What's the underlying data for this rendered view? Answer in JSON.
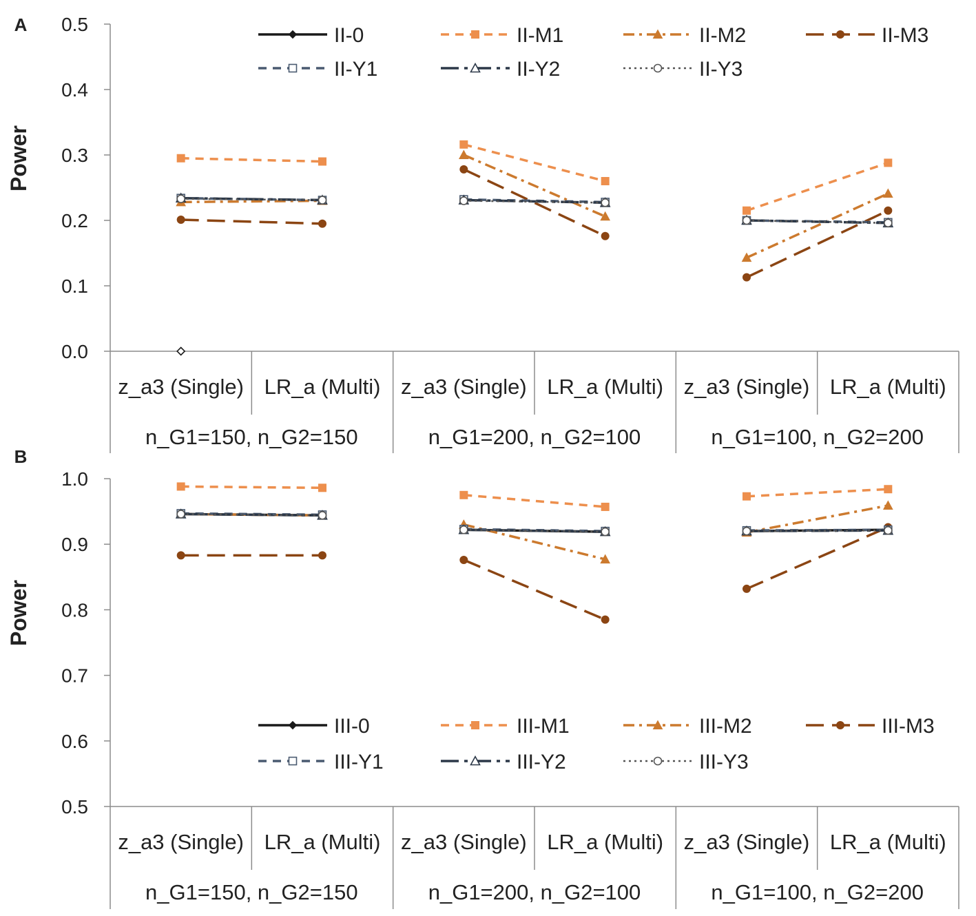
{
  "chart_data": [
    {
      "type": "line",
      "panel": "A",
      "ylabel": "Power",
      "ylim": [
        0.0,
        0.5
      ],
      "yticks": [
        "0.0",
        "0.1",
        "0.2",
        "0.3",
        "0.4",
        "0.5"
      ],
      "categories": [
        "z_a3 (Single)",
        "LR_a (Multi)",
        "z_a3 (Single)",
        "LR_a (Multi)",
        "z_a3 (Single)",
        "LR_a (Multi)"
      ],
      "groups": [
        "n_G1=150, n_G2=150",
        "n_G1=200, n_G2=100",
        "n_G1=100, n_G2=200"
      ],
      "legend_position": "top",
      "series": [
        {
          "name": "II-0",
          "color": "#1a1a1a",
          "dash": "solid",
          "marker": "diamond",
          "values": [
            0.0,
            null,
            null,
            null,
            null,
            null
          ]
        },
        {
          "name": "II-M1",
          "color": "#ed8f4d",
          "dash": "dash",
          "marker": "square",
          "values": [
            0.295,
            0.29,
            0.316,
            0.26,
            0.215,
            0.288
          ]
        },
        {
          "name": "II-M2",
          "color": "#cc7a2e",
          "dash": "dashdot",
          "marker": "triangle",
          "values": [
            0.228,
            0.23,
            0.3,
            0.206,
            0.143,
            0.241
          ]
        },
        {
          "name": "II-M3",
          "color": "#8b4513",
          "dash": "longdash",
          "marker": "circle",
          "values": [
            0.201,
            0.195,
            0.278,
            0.176,
            0.113,
            0.215
          ]
        },
        {
          "name": "II-Y1",
          "color": "#4a5a70",
          "dash": "dash",
          "marker": "square-open",
          "values": [
            0.234,
            0.231,
            0.232,
            0.228,
            0.2,
            0.197
          ]
        },
        {
          "name": "II-Y2",
          "color": "#2c3848",
          "dash": "longdashdot",
          "marker": "triangle-open",
          "values": [
            0.234,
            0.231,
            0.231,
            0.227,
            0.2,
            0.196
          ]
        },
        {
          "name": "II-Y3",
          "color": "#555555",
          "dash": "dot",
          "marker": "circle-open",
          "values": [
            0.233,
            0.231,
            0.23,
            0.227,
            0.2,
            0.196
          ]
        }
      ]
    },
    {
      "type": "line",
      "panel": "B",
      "ylabel": "Power",
      "ylim": [
        0.5,
        1.0
      ],
      "yticks": [
        "0.5",
        "0.6",
        "0.7",
        "0.8",
        "0.9",
        "1.0"
      ],
      "categories": [
        "z_a3 (Single)",
        "LR_a (Multi)",
        "z_a3 (Single)",
        "LR_a (Multi)",
        "z_a3 (Single)",
        "LR_a (Multi)"
      ],
      "groups": [
        "n_G1=150, n_G2=150",
        "n_G1=200, n_G2=100",
        "n_G1=100, n_G2=200"
      ],
      "legend_position": "bottom",
      "series": [
        {
          "name": "III-0",
          "color": "#1a1a1a",
          "dash": "solid",
          "marker": "diamond",
          "values": [
            0.946,
            0.944,
            0.922,
            0.919,
            0.92,
            0.922
          ]
        },
        {
          "name": "III-M1",
          "color": "#ed8f4d",
          "dash": "dash",
          "marker": "square",
          "values": [
            0.988,
            0.986,
            0.975,
            0.957,
            0.973,
            0.984
          ]
        },
        {
          "name": "III-M2",
          "color": "#cc7a2e",
          "dash": "dashdot",
          "marker": "triangle",
          "values": [
            0.946,
            0.944,
            0.93,
            0.877,
            0.918,
            0.959
          ]
        },
        {
          "name": "III-M3",
          "color": "#8b4513",
          "dash": "longdash",
          "marker": "circle",
          "values": [
            0.883,
            0.883,
            0.876,
            0.785,
            0.832,
            0.926
          ]
        },
        {
          "name": "III-Y1",
          "color": "#4a5a70",
          "dash": "dash",
          "marker": "square-open",
          "values": [
            0.947,
            0.945,
            0.923,
            0.92,
            0.921,
            0.922
          ]
        },
        {
          "name": "III-Y2",
          "color": "#2c3848",
          "dash": "longdashdot",
          "marker": "triangle-open",
          "values": [
            0.946,
            0.944,
            0.922,
            0.919,
            0.92,
            0.921
          ]
        },
        {
          "name": "III-Y3",
          "color": "#555555",
          "dash": "dot",
          "marker": "circle-open",
          "values": [
            0.946,
            0.944,
            0.922,
            0.919,
            0.92,
            0.921
          ]
        }
      ]
    }
  ]
}
